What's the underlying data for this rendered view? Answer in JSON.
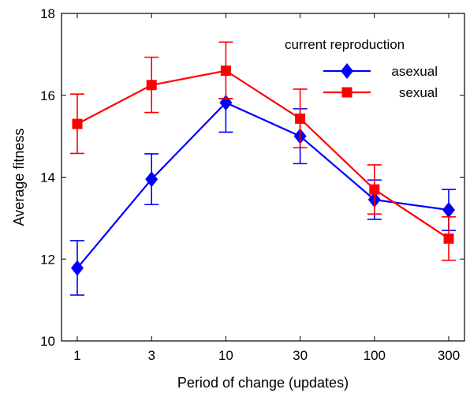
{
  "chart_data": {
    "type": "line",
    "title": "",
    "xlabel": "Period of change (updates)",
    "ylabel": "Average fitness",
    "x_scale": "log",
    "x": [
      1,
      3,
      10,
      30,
      100,
      300
    ],
    "x_tick_labels": [
      "1",
      "3",
      "10",
      "30",
      "100",
      "300"
    ],
    "ylim": [
      10,
      18
    ],
    "y_ticks": [
      10,
      12,
      14,
      16,
      18
    ],
    "y_tick_labels": [
      "10",
      "12",
      "14",
      "16",
      "18"
    ],
    "grid": false,
    "legend": {
      "title": "current reproduction",
      "placement": "top-right"
    },
    "series": [
      {
        "name": "asexual",
        "color": "#0000ff",
        "marker": "diamond",
        "values": [
          11.78,
          13.95,
          15.82,
          15.0,
          13.45,
          13.2
        ],
        "err_low": [
          11.12,
          13.33,
          15.1,
          14.33,
          12.97,
          12.7
        ],
        "err_high": [
          12.45,
          14.57,
          15.92,
          15.67,
          13.93,
          13.7
        ]
      },
      {
        "name": "sexual",
        "color": "#ff0000",
        "marker": "square",
        "values": [
          15.3,
          16.25,
          16.6,
          15.43,
          13.7,
          12.5
        ],
        "err_low": [
          14.58,
          15.58,
          15.92,
          14.72,
          13.1,
          11.97
        ],
        "err_high": [
          16.03,
          16.93,
          17.3,
          16.15,
          14.3,
          13.03
        ]
      }
    ]
  }
}
